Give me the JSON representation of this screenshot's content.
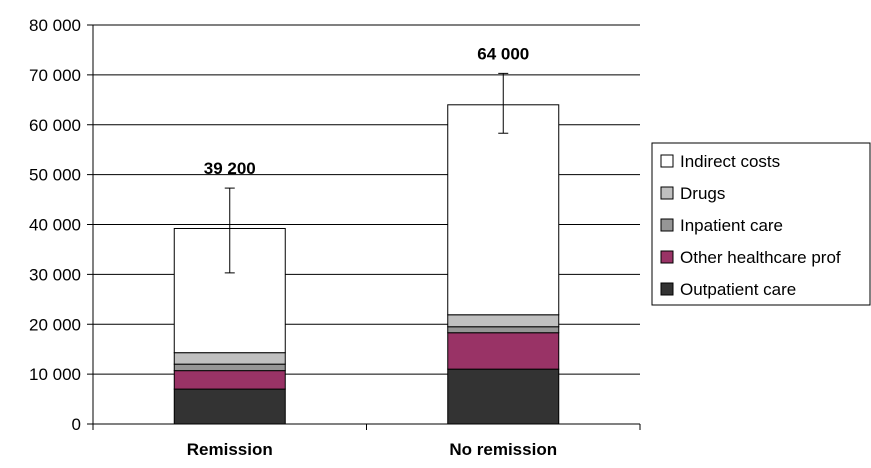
{
  "chart_data": {
    "type": "bar",
    "stacked": true,
    "categories": [
      "Remission",
      "No remission"
    ],
    "series": [
      {
        "name": "Outpatient care",
        "color": "#333333",
        "values": [
          7000,
          11000
        ]
      },
      {
        "name": "Other healthcare prof",
        "color": "#993366",
        "values": [
          3700,
          7300
        ]
      },
      {
        "name": "Inpatient care",
        "color": "#969696",
        "values": [
          1300,
          1200
        ]
      },
      {
        "name": "Drugs",
        "color": "#c0c0c0",
        "values": [
          2300,
          2400
        ]
      },
      {
        "name": "Indirect costs",
        "color": "#ffffff",
        "values": [
          24900,
          42100
        ]
      }
    ],
    "totals": [
      39200,
      64000
    ],
    "total_labels": [
      "39 200",
      "64 000"
    ],
    "error_bars": [
      {
        "low": 30300,
        "high": 47300
      },
      {
        "low": 58300,
        "high": 70300
      }
    ],
    "yticks": [
      "0",
      "10 000",
      "20 000",
      "30 000",
      "40 000",
      "50 000",
      "60 000",
      "70 000",
      "80 000"
    ],
    "ylim": [
      0,
      80000
    ],
    "grid": true,
    "legend_position": "right",
    "legend_order": [
      "Indirect costs",
      "Drugs",
      "Inpatient care",
      "Other healthcare prof",
      "Outpatient care"
    ]
  }
}
